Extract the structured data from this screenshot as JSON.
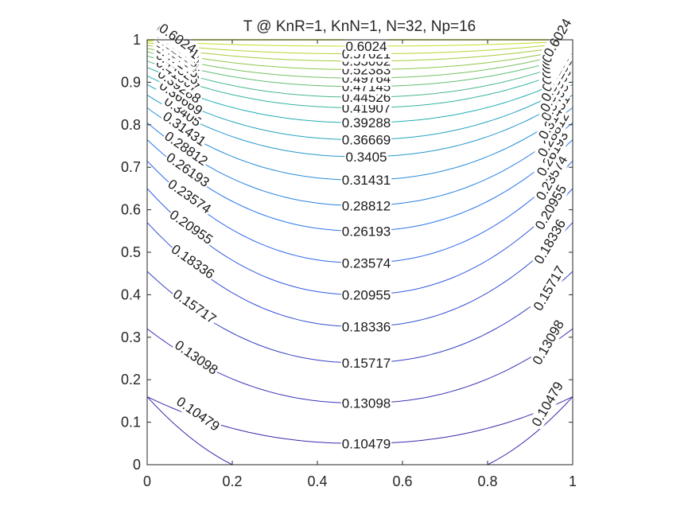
{
  "chart_data": {
    "type": "contour",
    "title": "T @ KnR=1, KnN=1, N=32, Np=16",
    "xlabel": "",
    "ylabel": "",
    "xlim": [
      0,
      1
    ],
    "ylim": [
      0,
      1
    ],
    "x_ticks": [
      "0",
      "0.2",
      "0.4",
      "0.6",
      "0.8",
      "1"
    ],
    "y_ticks": [
      "0",
      "0.1",
      "0.2",
      "0.3",
      "0.4",
      "0.5",
      "0.6",
      "0.7",
      "0.8",
      "0.9",
      "1"
    ],
    "grid": false,
    "colormap": "parula",
    "levels": [
      {
        "label": "0.10479",
        "value": 0.10479,
        "center_y": 0.05,
        "edge_y": 0.16
      },
      {
        "label": "0.13098",
        "value": 0.13098,
        "center_y": 0.145,
        "edge_y": 0.32
      },
      {
        "label": "0.15717",
        "value": 0.15717,
        "center_y": 0.24,
        "edge_y": 0.455
      },
      {
        "label": "0.18336",
        "value": 0.18336,
        "center_y": 0.325,
        "edge_y": 0.57
      },
      {
        "label": "0.20955",
        "value": 0.20955,
        "center_y": 0.4,
        "edge_y": 0.65
      },
      {
        "label": "0.23574",
        "value": 0.23574,
        "center_y": 0.475,
        "edge_y": 0.715
      },
      {
        "label": "0.26193",
        "value": 0.26193,
        "center_y": 0.55,
        "edge_y": 0.765
      },
      {
        "label": "0.28812",
        "value": 0.28812,
        "center_y": 0.61,
        "edge_y": 0.805
      },
      {
        "label": "0.31431",
        "value": 0.31431,
        "center_y": 0.67,
        "edge_y": 0.84
      },
      {
        "label": "0.3405",
        "value": 0.3405,
        "center_y": 0.725,
        "edge_y": 0.87
      },
      {
        "label": "0.36669",
        "value": 0.36669,
        "center_y": 0.765,
        "edge_y": 0.895
      },
      {
        "label": "0.39288",
        "value": 0.39288,
        "center_y": 0.805,
        "edge_y": 0.915
      },
      {
        "label": "0.41907",
        "value": 0.41907,
        "center_y": 0.84,
        "edge_y": 0.935
      },
      {
        "label": "0.44526",
        "value": 0.44526,
        "center_y": 0.865,
        "edge_y": 0.95
      },
      {
        "label": "0.47145",
        "value": 0.47145,
        "center_y": 0.89,
        "edge_y": 0.962
      },
      {
        "label": "0.49764",
        "value": 0.49764,
        "center_y": 0.91,
        "edge_y": 0.972
      },
      {
        "label": "0.52383",
        "value": 0.52383,
        "center_y": 0.93,
        "edge_y": 0.98
      },
      {
        "label": "0.55002",
        "value": 0.55002,
        "center_y": 0.95,
        "edge_y": 0.987
      },
      {
        "label": "0.57621",
        "value": 0.57621,
        "center_y": 0.967,
        "edge_y": 0.993
      },
      {
        "label": "0.6024",
        "value": 0.6024,
        "center_y": 0.985,
        "edge_y": 0.997
      }
    ]
  }
}
